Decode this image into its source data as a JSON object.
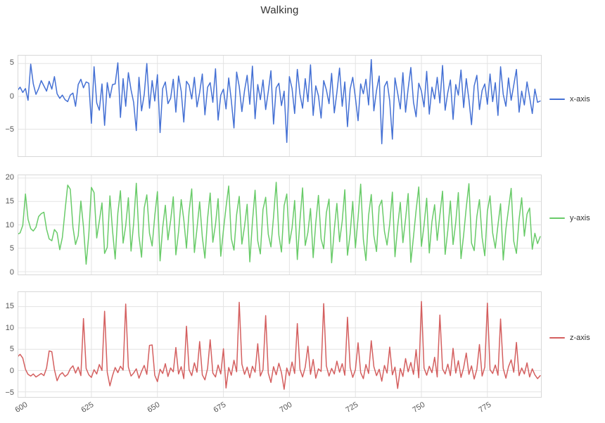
{
  "colors": {
    "background": "#ffffff",
    "grid": "#e3e3e3",
    "spine": "#d8d8d8",
    "tick_label": "#555555",
    "title": "#333333"
  },
  "chart_data": {
    "type": "line",
    "title": "Walking",
    "subtitle": "",
    "xlabel": "",
    "ylabel": "",
    "grid": true,
    "legend_position": "right-of-each-subplot",
    "x_start": 597,
    "x_step": 1,
    "xlim": [
      597.3,
      795.3
    ],
    "xticks": [
      600,
      625,
      650,
      675,
      700,
      725,
      750,
      775
    ],
    "series": [
      {
        "name": "x-axis",
        "color": "#4470d4",
        "ylim": [
          -9.1,
          6.2
        ],
        "yticks": [
          -5,
          0,
          5
        ],
        "values": [
          0.9,
          1.4,
          0.6,
          1.2,
          -0.6,
          4.9,
          1.9,
          0.3,
          1.2,
          2.4,
          1.6,
          0.8,
          2.3,
          1.1,
          3.0,
          0.4,
          -0.3,
          0.2,
          -0.5,
          -0.8,
          0.2,
          0.5,
          -1.5,
          1.8,
          2.6,
          1.3,
          2.2,
          2.0,
          -4.1,
          4.5,
          -1.0,
          -2.1,
          1.9,
          -4.4,
          2.1,
          -0.2,
          1.8,
          1.9,
          5.1,
          -3.2,
          2.7,
          -1.5,
          3.6,
          1.0,
          -0.9,
          -5.2,
          2.9,
          -2.2,
          0.3,
          5.0,
          -1.8,
          2.4,
          -0.7,
          3.3,
          -5.5,
          1.2,
          2.2,
          -1.1,
          -0.3,
          2.6,
          -2.4,
          3.1,
          0.8,
          -3.9,
          2.3,
          1.7,
          -0.4,
          2.9,
          -1.6,
          0.6,
          3.4,
          -2.8,
          1.4,
          2.1,
          -0.9,
          4.2,
          -3.6,
          0.2,
          1.1,
          -1.9,
          2.8,
          -0.6,
          -4.8,
          3.7,
          1.5,
          -2.3,
          0.9,
          3.2,
          -1.2,
          4.6,
          -3.4,
          1.8,
          -0.5,
          2.5,
          -2.0,
          0.7,
          3.9,
          -4.2,
          1.3,
          2.0,
          -1.4,
          0.8,
          -7.0,
          3.0,
          1.2,
          -2.6,
          4.1,
          0.3,
          -1.8,
          2.7,
          -0.8,
          4.8,
          -2.9,
          1.6,
          0.1,
          -3.3,
          2.4,
          1.0,
          -1.1,
          3.5,
          -2.5,
          0.6,
          4.3,
          -1.5,
          2.2,
          -4.6,
          1.1,
          2.9,
          -0.2,
          -3.7,
          1.9,
          0.4,
          2.6,
          -1.3,
          5.6,
          -2.2,
          0.9,
          3.1,
          -7.2,
          1.5,
          2.3,
          -0.7,
          -6.5,
          2.8,
          0.5,
          -1.9,
          3.6,
          -2.4,
          1.2,
          4.4,
          -0.9,
          -3.1,
          2.0,
          0.8,
          -1.6,
          3.8,
          -2.7,
          1.4,
          -0.4,
          2.9,
          -1.0,
          4.7,
          -2.1,
          0.6,
          2.5,
          -3.5,
          1.8,
          0.2,
          4.0,
          -1.7,
          2.7,
          -0.5,
          -4.3,
          1.6,
          3.2,
          -2.0,
          0.9,
          1.9,
          -1.2,
          3.4,
          -0.8,
          2.1,
          -2.9,
          4.5,
          0.3,
          -1.5,
          2.8,
          -0.6,
          1.7,
          4.1,
          -2.4,
          0.8,
          -1.3,
          2.2,
          -0.1,
          -2.6,
          1.1,
          -0.9,
          -0.7
        ]
      },
      {
        "name": "y-axis",
        "color": "#69cb69",
        "ylim": [
          -0.6,
          20.6
        ],
        "yticks": [
          0,
          5,
          10,
          15,
          20
        ],
        "values": [
          8.0,
          8.3,
          9.9,
          16.6,
          11.2,
          9.2,
          8.7,
          9.5,
          11.8,
          12.4,
          12.7,
          9.1,
          7.0,
          6.6,
          9.0,
          8.3,
          4.7,
          7.3,
          13.0,
          18.5,
          17.6,
          9.5,
          5.8,
          7.7,
          15.1,
          9.6,
          1.6,
          7.9,
          18.0,
          16.9,
          7.2,
          10.8,
          14.7,
          3.9,
          5.2,
          16.2,
          8.8,
          2.7,
          12.5,
          17.3,
          6.1,
          9.8,
          15.8,
          4.4,
          10.3,
          18.9,
          7.6,
          3.1,
          13.6,
          16.4,
          8.2,
          5.5,
          11.9,
          17.1,
          2.3,
          9.4,
          14.2,
          6.8,
          10.9,
          16.0,
          3.6,
          8.5,
          15.4,
          11.1,
          5.0,
          12.8,
          17.7,
          4.1,
          9.2,
          14.9,
          7.4,
          2.9,
          11.4,
          16.8,
          6.3,
          10.1,
          15.6,
          3.3,
          8.9,
          13.8,
          18.3,
          7.1,
          4.6,
          12.2,
          16.1,
          5.9,
          9.7,
          14.4,
          2.1,
          10.6,
          17.4,
          6.6,
          3.8,
          13.3,
          15.9,
          8.0,
          5.3,
          11.7,
          19.1,
          7.8,
          4.2,
          14.1,
          16.6,
          6.0,
          9.3,
          15.2,
          2.6,
          11.0,
          17.9,
          5.6,
          8.4,
          13.5,
          3.0,
          10.4,
          16.3,
          7.0,
          4.9,
          12.6,
          15.5,
          1.9,
          9.0,
          14.6,
          6.4,
          10.8,
          17.5,
          3.5,
          8.1,
          15.0,
          5.1,
          11.5,
          18.7,
          6.9,
          2.4,
          12.0,
          16.5,
          7.7,
          4.3,
          13.9,
          15.3,
          8.6,
          5.7,
          10.2,
          17.0,
          3.2,
          9.6,
          14.8,
          6.2,
          11.3,
          16.7,
          2.0,
          7.5,
          13.1,
          18.1,
          5.4,
          9.9,
          15.7,
          4.0,
          10.7,
          14.3,
          6.7,
          12.1,
          17.2,
          3.7,
          8.8,
          15.1,
          5.8,
          10.5,
          16.9,
          2.8,
          7.9,
          13.7,
          18.8,
          6.1,
          4.5,
          11.8,
          15.4,
          7.3,
          3.4,
          12.9,
          16.2,
          8.3,
          5.0,
          10.0,
          14.5,
          2.5,
          9.1,
          13.4,
          17.8,
          6.5,
          3.9,
          11.2,
          15.8,
          7.6,
          12.3,
          13.6,
          4.8,
          8.2,
          6.0,
          7.5
        ]
      },
      {
        "name": "z-axis",
        "color": "#d45f5f",
        "ylim": [
          -6.2,
          18.4
        ],
        "yticks": [
          -5,
          0,
          5,
          10,
          15
        ],
        "values": [
          3.2,
          3.8,
          2.9,
          0.3,
          -0.9,
          -1.3,
          -0.8,
          -1.5,
          -1.1,
          -0.7,
          -1.2,
          0.6,
          4.6,
          4.4,
          0.2,
          -2.4,
          -1.0,
          -0.5,
          -1.4,
          -0.9,
          0.4,
          1.1,
          -0.6,
          0.8,
          -1.2,
          12.2,
          0.5,
          -1.0,
          -1.6,
          0.2,
          -0.8,
          1.4,
          0.0,
          13.9,
          -0.4,
          -3.6,
          -1.2,
          0.7,
          -0.5,
          1.0,
          0.1,
          15.6,
          0.8,
          -1.3,
          -0.6,
          0.4,
          -1.8,
          -0.2,
          1.2,
          -0.9,
          5.9,
          6.0,
          -1.1,
          -2.6,
          0.3,
          -0.7,
          1.6,
          -1.4,
          0.6,
          -0.3,
          5.4,
          -0.8,
          0.9,
          -1.9,
          10.4,
          0.2,
          -1.2,
          1.8,
          -0.4,
          6.8,
          -1.0,
          -2.2,
          0.5,
          7.2,
          -0.6,
          -1.5,
          1.3,
          -0.8,
          5.1,
          -4.1,
          0.7,
          -1.1,
          2.4,
          -0.3,
          16.0,
          1.5,
          -0.9,
          0.8,
          -1.7,
          1.0,
          -0.4,
          6.3,
          -1.3,
          0.2,
          12.9,
          -0.6,
          -2.8,
          0.9,
          -1.0,
          1.7,
          -0.5,
          -4.4,
          0.6,
          -1.2,
          2.0,
          -0.7,
          11.0,
          0.3,
          -1.5,
          0.8,
          5.7,
          -0.9,
          2.6,
          -1.8,
          0.4,
          -0.2,
          15.7,
          1.1,
          -1.3,
          0.5,
          -0.8,
          2.2,
          -0.4,
          1.6,
          -1.1,
          12.5,
          0.7,
          -1.6,
          0.2,
          6.5,
          -0.5,
          -1.9,
          1.4,
          -0.7,
          7.0,
          0.9,
          -1.2,
          0.3,
          -2.5,
          1.2,
          -0.6,
          5.5,
          -1.0,
          0.8,
          -4.2,
          0.5,
          -1.4,
          2.8,
          -0.3,
          1.9,
          -0.9,
          4.9,
          -1.7,
          16.2,
          0.6,
          -1.1,
          1.0,
          -0.5,
          3.1,
          -1.5,
          13.0,
          0.4,
          -0.8,
          1.5,
          -1.2,
          5.2,
          -0.6,
          2.3,
          -1.6,
          0.7,
          4.1,
          -0.9,
          1.1,
          -2.0,
          0.3,
          6.1,
          -1.3,
          0.8,
          15.8,
          0.2,
          -0.7,
          1.3,
          -1.1,
          12.1,
          0.5,
          -1.8,
          0.9,
          2.5,
          -0.4,
          6.6,
          -1.2,
          0.6,
          -0.8,
          1.8,
          -1.5,
          0.4,
          -1.0,
          -1.9,
          -1.2
        ]
      }
    ]
  }
}
